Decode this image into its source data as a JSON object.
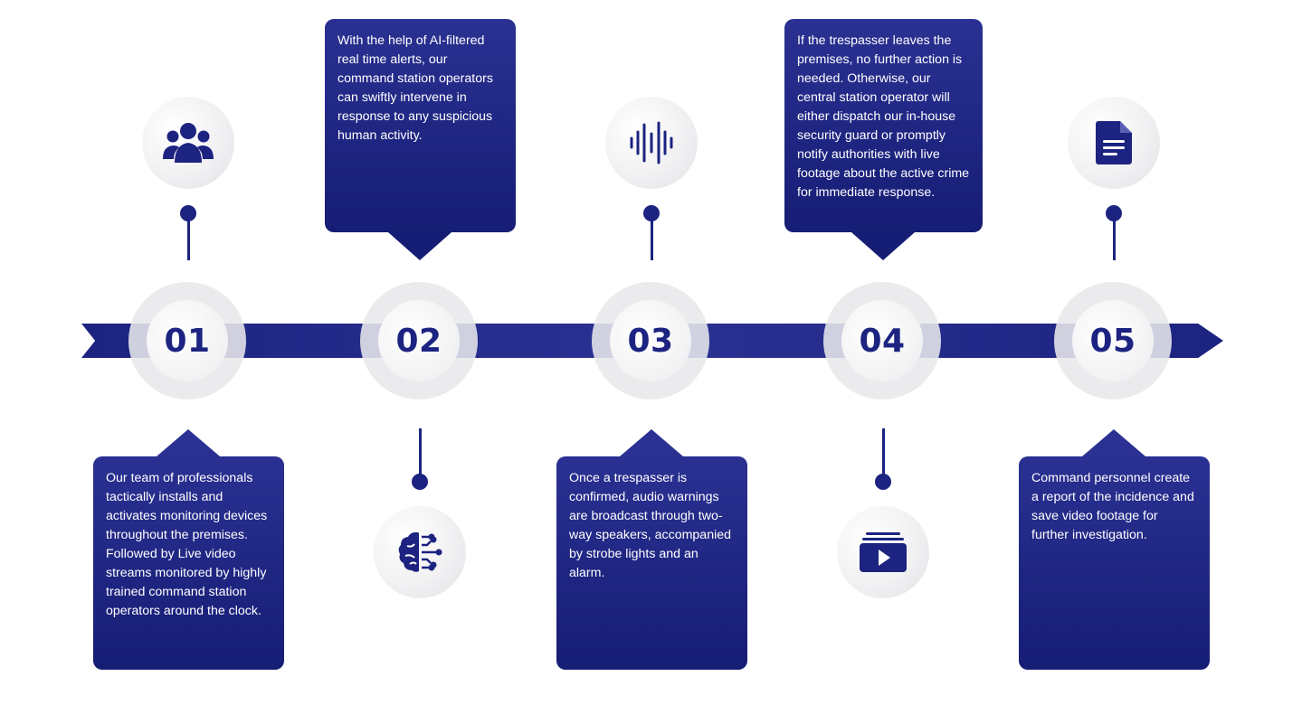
{
  "colors": {
    "primary": "#1c2380",
    "primary_light": "#2a3192",
    "circle_gray": "#e8e8ec",
    "background": "#ffffff"
  },
  "steps": [
    {
      "number": "01",
      "icon": "team-icon",
      "text": "Our team of professionals tactically installs and activates monitoring devices throughout the premises. Followed by Live video streams monitored by highly trained command station operators around the clock."
    },
    {
      "number": "02",
      "icon": "ai-brain-icon",
      "text": "With the help of AI-filtered real time alerts, our command station operators can swiftly intervene in response to any suspicious human activity."
    },
    {
      "number": "03",
      "icon": "audio-wave-icon",
      "text": "Once a trespasser is confirmed, audio warnings are broadcast through two-way speakers, accompanied by strobe lights and an alarm."
    },
    {
      "number": "04",
      "icon": "video-library-icon",
      "text": "If the trespasser leaves the premises, no further action is needed. Otherwise, our central station operator will either dispatch our in-house security guard or promptly notify authorities with live footage about the active crime for immediate response."
    },
    {
      "number": "05",
      "icon": "document-icon",
      "text": "Command personnel create a report of the incidence and save video footage for further investigation."
    }
  ]
}
